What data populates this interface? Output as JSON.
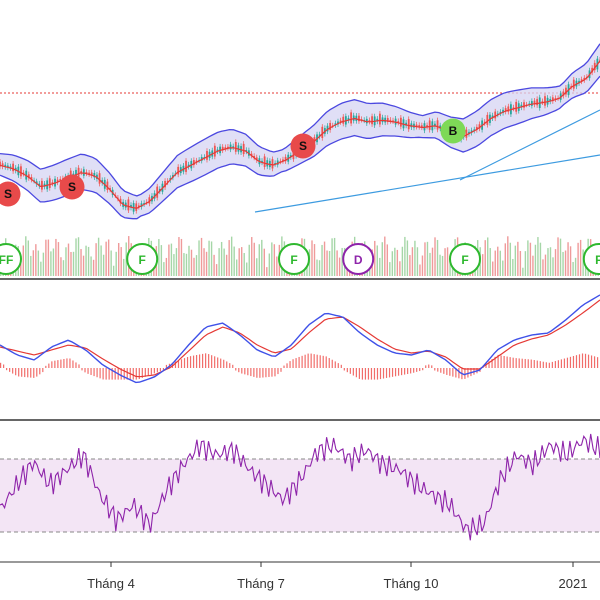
{
  "colors": {
    "background": "#ffffff",
    "band_fill": "#d6d4f3",
    "band_line": "#4b48e0",
    "price_ma": "#e53935",
    "candle_up": "#26a69a",
    "candle_down": "#ef5350",
    "trend_line": "#3d9be0",
    "resistance": "#e53935",
    "volume_up": "#a5d6a7",
    "volume_down": "#ef9a9a",
    "macd_line": "#3f51e8",
    "signal_line": "#e53935",
    "hist": "#ef5350",
    "rsi_line": "#8e24aa",
    "rsi_fill": "#f3e5f5",
    "sell_badge": "#e84a4a",
    "buy_badge": "#7ed957",
    "f_badge": "#2eb82e",
    "d_badge": "#8e24aa",
    "separator": "#333333"
  },
  "signals": [
    {
      "label": "S",
      "kind": "sell",
      "t": 0.01
    },
    {
      "label": "S",
      "kind": "sell",
      "t": 0.12
    },
    {
      "label": "S",
      "kind": "sell",
      "t": 0.505
    },
    {
      "label": "B",
      "kind": "buy",
      "t": 0.755
    }
  ],
  "volume_badges": [
    {
      "label": "FF",
      "kind": "f",
      "t": 0.0
    },
    {
      "label": "F",
      "kind": "f",
      "t": 0.237
    },
    {
      "label": "F",
      "kind": "f",
      "t": 0.49
    },
    {
      "label": "D",
      "kind": "d",
      "t": 0.597
    },
    {
      "label": "F",
      "kind": "f",
      "t": 0.775
    },
    {
      "label": "F",
      "kind": "f",
      "t": 0.998
    }
  ],
  "x_axis": {
    "labels": [
      {
        "text": "Tháng 4",
        "t": 0.185
      },
      {
        "text": "Tháng 7",
        "t": 0.435
      },
      {
        "text": "Tháng 10",
        "t": 0.685
      },
      {
        "text": "2021",
        "t": 0.955
      }
    ]
  },
  "chart_data": [
    {
      "type": "line",
      "panel": "price",
      "series": [
        {
          "values": [
            0.42,
            0.4,
            0.36,
            0.3,
            0.32,
            0.35,
            0.38,
            0.36,
            0.29,
            0.2,
            0.18,
            0.22,
            0.3,
            0.38,
            0.42,
            0.46,
            0.5,
            0.52,
            0.5,
            0.44,
            0.42,
            0.45,
            0.5,
            0.55,
            0.62,
            0.66,
            0.68,
            0.66,
            0.67,
            0.66,
            0.64,
            0.63,
            0.64,
            0.6,
            0.58,
            0.62,
            0.68,
            0.72,
            0.74,
            0.76,
            0.77,
            0.79,
            0.86,
            0.9,
            1.0
          ]
        }
      ]
    },
    {
      "type": "line",
      "panel": "macd",
      "series": [
        {
          "values": [
            0.5,
            0.4,
            0.35,
            0.48,
            0.55,
            0.45,
            0.3,
            0.2,
            0.12,
            0.18,
            0.3,
            0.5,
            0.68,
            0.72,
            0.6,
            0.45,
            0.38,
            0.5,
            0.7,
            0.82,
            0.78,
            0.62,
            0.5,
            0.42,
            0.4,
            0.45,
            0.35,
            0.2,
            0.25,
            0.45,
            0.55,
            0.6,
            0.62,
            0.75,
            0.9,
            1.0
          ]
        },
        {
          "values": [
            0.48,
            0.44,
            0.4,
            0.45,
            0.5,
            0.47,
            0.36,
            0.26,
            0.18,
            0.2,
            0.28,
            0.44,
            0.6,
            0.68,
            0.62,
            0.5,
            0.42,
            0.46,
            0.62,
            0.76,
            0.78,
            0.68,
            0.56,
            0.46,
            0.42,
            0.44,
            0.38,
            0.26,
            0.26,
            0.38,
            0.5,
            0.56,
            0.6,
            0.7,
            0.82,
            0.95
          ]
        }
      ]
    },
    {
      "type": "line",
      "panel": "rsi",
      "series": [
        {
          "values": [
            0.3,
            0.55,
            0.78,
            0.55,
            0.7,
            0.85,
            0.45,
            0.2,
            0.35,
            0.15,
            0.5,
            0.75,
            0.95,
            0.85,
            0.9,
            0.7,
            0.55,
            0.4,
            0.6,
            0.88,
            0.95,
            0.8,
            0.9,
            0.75,
            0.7,
            0.55,
            0.45,
            0.35,
            0.1,
            0.15,
            0.6,
            0.85,
            0.75,
            0.95,
            0.85,
            1.0,
            0.9
          ]
        }
      ]
    }
  ]
}
